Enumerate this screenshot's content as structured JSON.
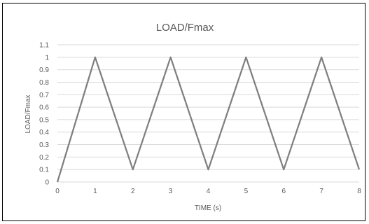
{
  "chart_data": {
    "type": "line",
    "title": "LOAD/Fmax",
    "xlabel": "TIME (s)",
    "ylabel": "LOAD/Fmax",
    "xlim": [
      0,
      8
    ],
    "ylim": [
      0,
      1.1
    ],
    "x_ticks": [
      "0",
      "1",
      "2",
      "3",
      "4",
      "5",
      "6",
      "7",
      "8"
    ],
    "y_ticks": [
      "0",
      "0.1",
      "0.2",
      "0.3",
      "0.4",
      "0.5",
      "0.6",
      "0.7",
      "0.8",
      "0.9",
      "1",
      "1.1"
    ],
    "grid": "horizontal",
    "legend": "none",
    "series": [
      {
        "x": [
          0,
          1,
          2,
          3,
          4,
          5,
          6,
          7,
          8
        ],
        "y": [
          0,
          1,
          0.1,
          1,
          0.1,
          1,
          0.1,
          1,
          0.1
        ],
        "color": "#7f7f7f"
      }
    ]
  }
}
